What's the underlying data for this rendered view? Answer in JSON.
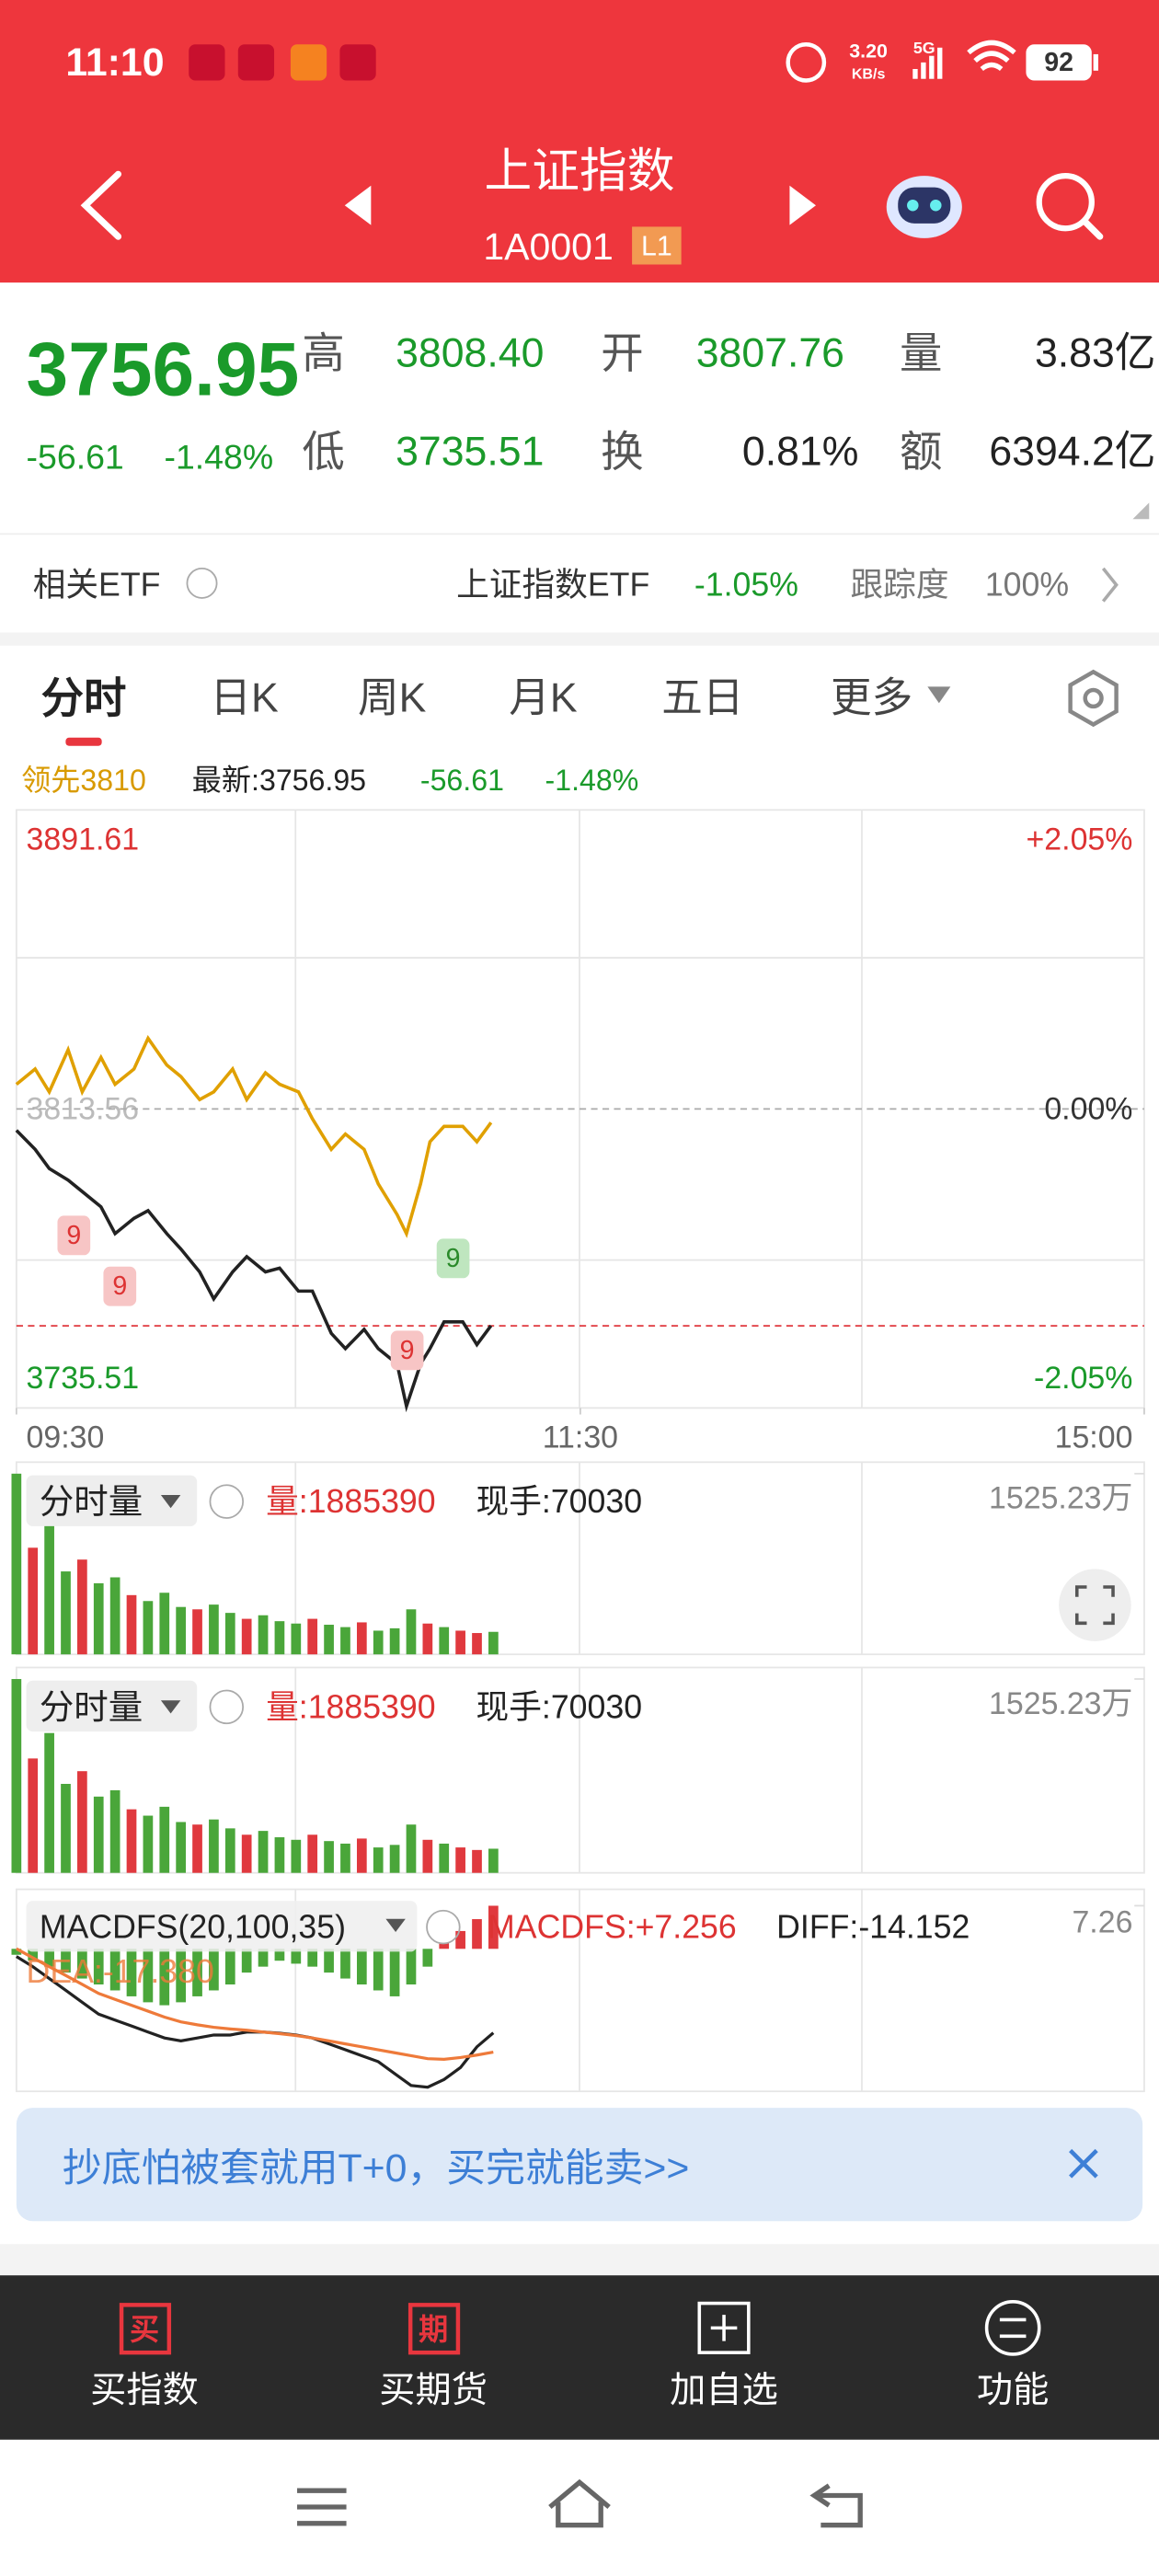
{
  "status_bar": {
    "time": "11:10",
    "speed": "3.20",
    "speed_unit": "KB/s",
    "network": "5G",
    "battery": "92"
  },
  "header": {
    "title": "上证指数",
    "code": "1A0001",
    "level": "L1"
  },
  "quote": {
    "price": "3756.95",
    "change": "-56.61",
    "change_pct": "-1.48%",
    "high_label": "高",
    "high": "3808.40",
    "open_label": "开",
    "open": "3807.76",
    "volume_label": "量",
    "volume": "3.83亿",
    "low_label": "低",
    "low": "3735.51",
    "turnover_label": "换",
    "turnover": "0.81%",
    "amount_label": "额",
    "amount": "6394.2亿"
  },
  "etf": {
    "label": "相关ETF",
    "name": "上证指数ETF",
    "change": "-1.05%",
    "tracking_label": "跟踪度",
    "tracking": "100%"
  },
  "tabs": [
    "分时",
    "日K",
    "周K",
    "月K",
    "五日",
    "更多"
  ],
  "chart_info": {
    "lead": "领先3810",
    "latest": "最新:3756.95",
    "change": "-56.61",
    "change_pct": "-1.48%"
  },
  "chart_data": [
    {
      "type": "line",
      "x": [
        0,
        4,
        7,
        11,
        14,
        18,
        21,
        25,
        28,
        32,
        35,
        39,
        42,
        46,
        49,
        53,
        56,
        60,
        63,
        67,
        70,
        74,
        77,
        81,
        83,
        86,
        88,
        91,
        95,
        98,
        101
      ],
      "series": [
        {
          "color": "#222222",
          "values": [
            3808,
            3803,
            3798,
            3795,
            3792,
            3788,
            3781,
            3785,
            3787,
            3781,
            3777,
            3771,
            3764,
            3771,
            3775,
            3771,
            3772,
            3766,
            3766,
            3755,
            3751,
            3756,
            3751,
            3747,
            3736,
            3747,
            3751,
            3758,
            3758,
            3752,
            3757
          ]
        },
        {
          "color": "#e0a000",
          "values": [
            3820,
            3824,
            3818,
            3829,
            3818,
            3827,
            3820,
            3824,
            3832,
            3825,
            3822,
            3816,
            3818,
            3824,
            3816,
            3823,
            3820,
            3818,
            3811,
            3803,
            3807,
            3803,
            3794,
            3786,
            3781,
            3794,
            3805,
            3809,
            3809,
            3805,
            3810
          ]
        }
      ],
      "xlim": [
        0,
        240
      ],
      "xticks": [
        {
          "value": 0,
          "label": "09:30"
        },
        {
          "value": 120,
          "label": "11:30"
        },
        {
          "value": 240,
          "label": "15:00"
        }
      ],
      "ylim": [
        3735.51,
        3891.61
      ],
      "yticks": [
        3891.61,
        3813.56,
        3735.51
      ],
      "y2lim": [
        -2.05,
        2.05
      ],
      "y2ticks": [
        {
          "value": 2.05,
          "label": "+2.05%"
        },
        {
          "value": 0,
          "label": "0.00%"
        },
        {
          "value": -2.05,
          "label": "-2.05%"
        }
      ],
      "last_price": 3756.95,
      "annotations": [
        "9",
        "9",
        "9",
        "9"
      ]
    },
    {
      "type": "bar",
      "title": "分时量",
      "volume": "量:1885390",
      "hand": "现手:70030",
      "x": [
        0,
        3.5,
        7,
        10.5,
        14,
        17.5,
        21,
        24.5,
        28,
        31.5,
        35,
        38.5,
        42,
        45.5,
        49,
        52.5,
        56,
        59.5,
        63,
        66.5,
        70,
        73.5,
        77,
        80.5,
        84,
        87.5,
        91,
        94.5,
        98,
        101.5
      ],
      "values": [
        1525,
        900,
        1100,
        700,
        800,
        600,
        650,
        500,
        450,
        520,
        400,
        380,
        420,
        350,
        300,
        330,
        280,
        260,
        300,
        250,
        230,
        270,
        200,
        220,
        380,
        260,
        230,
        200,
        180,
        190
      ],
      "colors": [
        "#4aa63a",
        "#e0393e",
        "#4aa63a",
        "#4aa63a",
        "#e0393e",
        "#4aa63a",
        "#4aa63a",
        "#e0393e",
        "#4aa63a",
        "#4aa63a",
        "#4aa63a",
        "#e0393e",
        "#4aa63a",
        "#4aa63a",
        "#e0393e",
        "#4aa63a",
        "#4aa63a",
        "#4aa63a",
        "#e0393e",
        "#4aa63a",
        "#4aa63a",
        "#e0393e",
        "#4aa63a",
        "#4aa63a",
        "#4aa63a",
        "#e0393e",
        "#4aa63a",
        "#e0393e",
        "#e0393e",
        "#4aa63a"
      ],
      "xlim": [
        0,
        240
      ],
      "ylim": [
        0,
        1525.23
      ],
      "yticks": [
        {
          "value": 1525.23,
          "label": "1525.23万"
        }
      ]
    },
    {
      "type": "bar",
      "title": "分时量",
      "volume": "量:1885390",
      "hand": "现手:70030",
      "x": [
        0,
        3.5,
        7,
        10.5,
        14,
        17.5,
        21,
        24.5,
        28,
        31.5,
        35,
        38.5,
        42,
        45.5,
        49,
        52.5,
        56,
        59.5,
        63,
        66.5,
        70,
        73.5,
        77,
        80.5,
        84,
        87.5,
        91,
        94.5,
        98,
        101.5
      ],
      "values": [
        1525,
        900,
        1100,
        700,
        800,
        600,
        650,
        500,
        450,
        520,
        400,
        380,
        420,
        350,
        300,
        330,
        280,
        260,
        300,
        250,
        230,
        270,
        200,
        220,
        380,
        260,
        230,
        200,
        180,
        190
      ],
      "colors": [
        "#4aa63a",
        "#e0393e",
        "#4aa63a",
        "#4aa63a",
        "#e0393e",
        "#4aa63a",
        "#4aa63a",
        "#e0393e",
        "#4aa63a",
        "#4aa63a",
        "#4aa63a",
        "#e0393e",
        "#4aa63a",
        "#4aa63a",
        "#e0393e",
        "#4aa63a",
        "#4aa63a",
        "#4aa63a",
        "#e0393e",
        "#4aa63a",
        "#4aa63a",
        "#e0393e",
        "#4aa63a",
        "#4aa63a",
        "#4aa63a",
        "#e0393e",
        "#4aa63a",
        "#e0393e",
        "#e0393e",
        "#4aa63a"
      ],
      "xlim": [
        0,
        240
      ],
      "ylim": [
        0,
        1525.23
      ],
      "yticks": [
        {
          "value": 1525.23,
          "label": "1525.23万"
        }
      ]
    },
    {
      "type": "macd",
      "title": "MACDFS(20,100,35)",
      "macdfs": "MACDFS:+7.256",
      "diff": "DIFF:-14.152",
      "dea": "DEA:-17.380",
      "x": [
        0,
        3.5,
        7,
        10.5,
        14,
        17.5,
        21,
        24.5,
        28,
        31.5,
        35,
        38.5,
        42,
        45.5,
        49,
        52.5,
        56,
        59.5,
        63,
        66.5,
        70,
        73.5,
        77,
        80.5,
        84,
        87.5,
        91,
        94.5,
        98,
        101.5
      ],
      "histogram": [
        -1,
        -2,
        -3,
        -4,
        -5,
        -6,
        -7,
        -8,
        -9,
        -9.5,
        -9,
        -8,
        -7,
        -6,
        -4,
        -3,
        -2,
        -2.5,
        -3,
        -4,
        -5,
        -6,
        -7,
        -8,
        -6,
        -3,
        1,
        3,
        5,
        7.256
      ],
      "up_color": "#e0393e",
      "down_color": "#4aa63a",
      "series": [
        {
          "color": "#222222",
          "values": [
            -1.3,
            -3,
            -5,
            -7,
            -9,
            -11,
            -12,
            -13,
            -14,
            -15,
            -15.5,
            -15,
            -14.5,
            -14.5,
            -14,
            -14,
            -14.2,
            -14.5,
            -15,
            -16,
            -17,
            -18,
            -19,
            -21,
            -23,
            -23.3,
            -22,
            -20,
            -16.5,
            -14.152
          ]
        },
        {
          "color": "#ee7a3a",
          "values": [
            0,
            -1.5,
            -3,
            -4.5,
            -6,
            -7.5,
            -8.5,
            -9.5,
            -10.5,
            -11.5,
            -12.3,
            -12.8,
            -13.2,
            -13.5,
            -13.7,
            -14,
            -14.3,
            -14.6,
            -15,
            -15.5,
            -16,
            -16.5,
            -17,
            -17.5,
            -18,
            -18.5,
            -18.6,
            -18.3,
            -17.9,
            -17.38
          ]
        }
      ],
      "xlim": [
        0,
        240
      ],
      "ylim": [
        -24,
        7.26
      ],
      "yticks": [
        7.26
      ]
    }
  ],
  "banner": {
    "text": "抄底怕被套就用T+0，买完就能卖>>"
  },
  "bottom_nav": [
    {
      "icon": "买",
      "label": "买指数"
    },
    {
      "icon": "期",
      "label": "买期货"
    },
    {
      "label": "加自选"
    },
    {
      "label": "功能"
    }
  ]
}
